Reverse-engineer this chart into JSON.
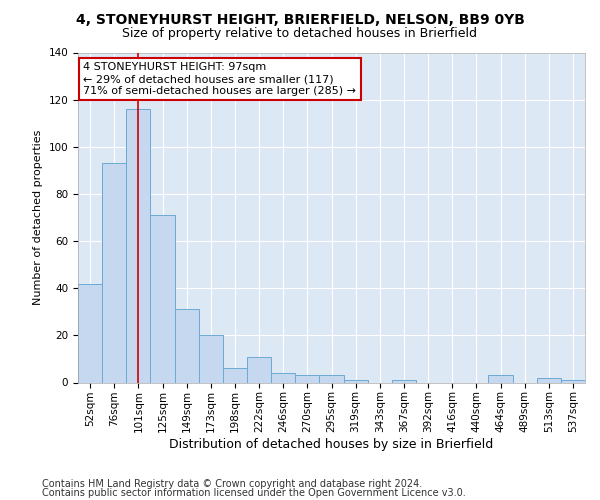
{
  "title1": "4, STONEYHURST HEIGHT, BRIERFIELD, NELSON, BB9 0YB",
  "title2": "Size of property relative to detached houses in Brierfield",
  "xlabel": "Distribution of detached houses by size in Brierfield",
  "ylabel": "Number of detached properties",
  "categories": [
    "52sqm",
    "76sqm",
    "101sqm",
    "125sqm",
    "149sqm",
    "173sqm",
    "198sqm",
    "222sqm",
    "246sqm",
    "270sqm",
    "295sqm",
    "319sqm",
    "343sqm",
    "367sqm",
    "392sqm",
    "416sqm",
    "440sqm",
    "464sqm",
    "489sqm",
    "513sqm",
    "537sqm"
  ],
  "values": [
    42,
    93,
    116,
    71,
    31,
    20,
    6,
    11,
    4,
    3,
    3,
    1,
    0,
    1,
    0,
    0,
    0,
    3,
    0,
    2,
    1
  ],
  "bar_color": "#c5d8f0",
  "bar_edge_color": "#6aaad4",
  "vline_x": 2,
  "vline_color": "#cc0000",
  "ylim": [
    0,
    140
  ],
  "yticks": [
    0,
    20,
    40,
    60,
    80,
    100,
    120,
    140
  ],
  "annotation_line1": "4 STONEYHURST HEIGHT: 97sqm",
  "annotation_line2": "← 29% of detached houses are smaller (117)",
  "annotation_line3": "71% of semi-detached houses are larger (285) →",
  "annotation_box_color": "#ffffff",
  "annotation_box_edge": "#cc0000",
  "footer1": "Contains HM Land Registry data © Crown copyright and database right 2024.",
  "footer2": "Contains public sector information licensed under the Open Government Licence v3.0.",
  "bg_color": "#dde8f5",
  "grid_color": "#ffffff",
  "fig_bg_color": "#ffffff",
  "title1_fontsize": 10,
  "title2_fontsize": 9,
  "xlabel_fontsize": 9,
  "ylabel_fontsize": 8,
  "tick_fontsize": 7.5,
  "annot_fontsize": 8,
  "footer_fontsize": 7
}
